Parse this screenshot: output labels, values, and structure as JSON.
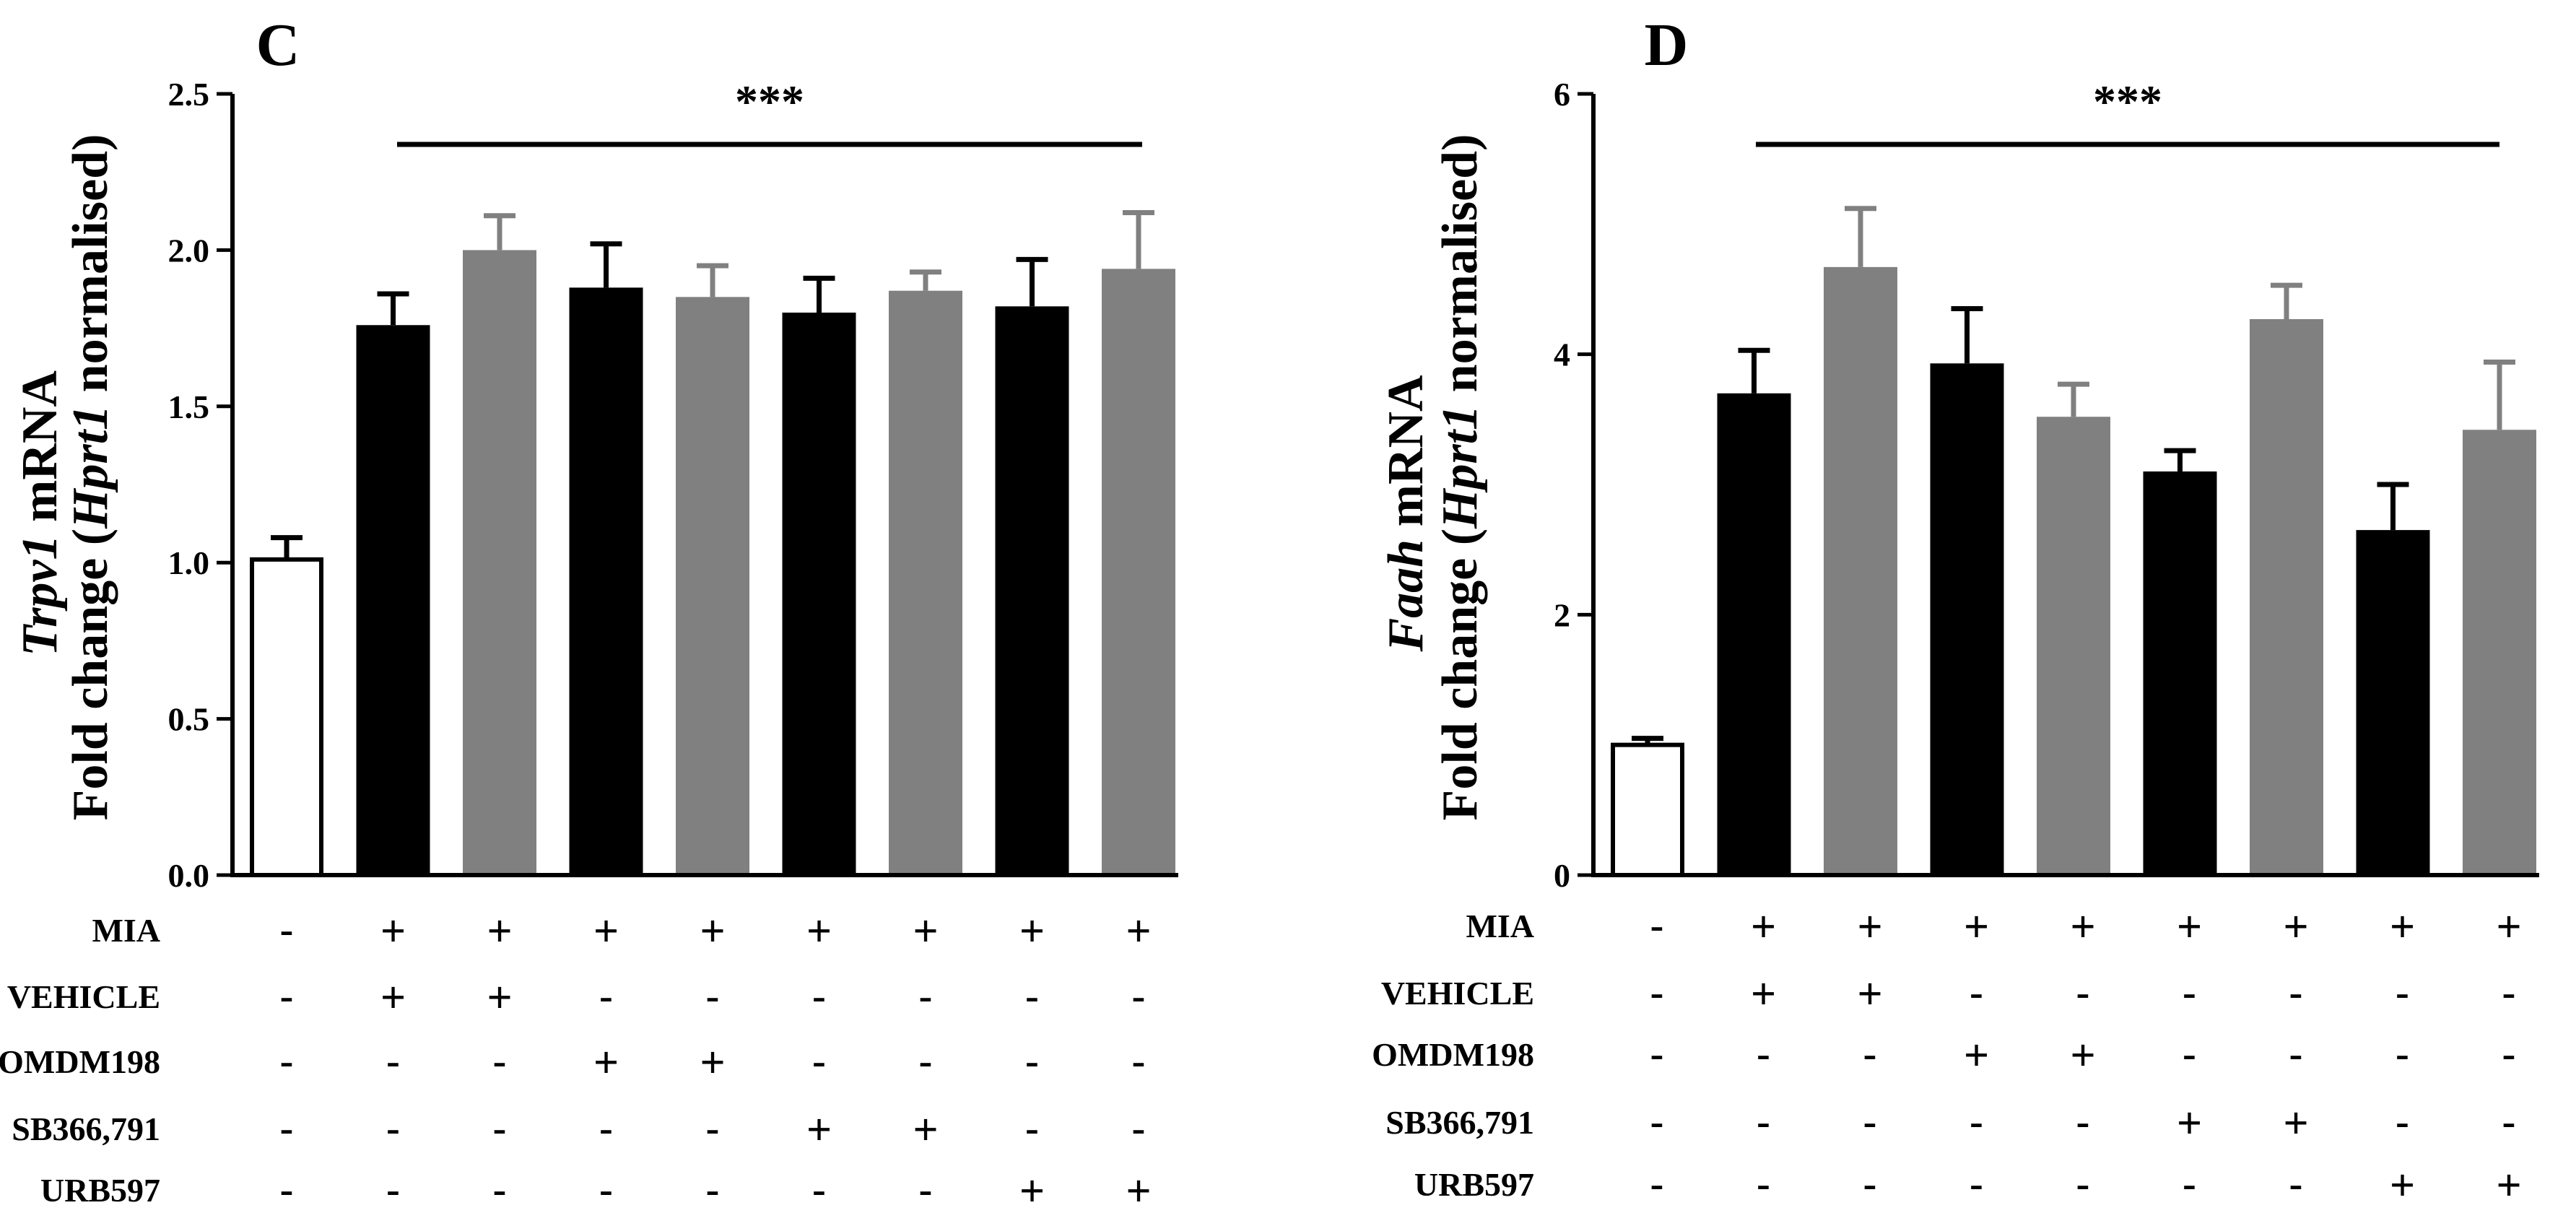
{
  "chart_data": [
    {
      "type": "bar",
      "panel_letter": "C",
      "ylabel_gene": "Trpv1",
      "ylabel_suffix": " mRNA",
      "ylabel_line2_pre": "Fold change (",
      "ylabel_line2_ref": "Hprt1",
      "ylabel_line2_post": " normalised)",
      "ylim": [
        0,
        2.5
      ],
      "yticks": [
        "0.0",
        "0.5",
        "1.0",
        "1.5",
        "2.0",
        "2.5"
      ],
      "significance": "***",
      "values": [
        1.01,
        1.76,
        2.0,
        1.88,
        1.85,
        1.8,
        1.87,
        1.82,
        1.94
      ],
      "errors": [
        0.07,
        0.1,
        0.11,
        0.14,
        0.1,
        0.11,
        0.06,
        0.15,
        0.18
      ],
      "fills": [
        "white",
        "black",
        "gray",
        "black",
        "gray",
        "black",
        "gray",
        "black",
        "gray"
      ]
    },
    {
      "type": "bar",
      "panel_letter": "D",
      "ylabel_gene": "Faah",
      "ylabel_suffix": " mRNA",
      "ylabel_line2_pre": "Fold change (",
      "ylabel_line2_ref": "Hprt1",
      "ylabel_line2_post": " normalised)",
      "ylim": [
        0,
        6
      ],
      "yticks": [
        "0",
        "2",
        "4",
        "6"
      ],
      "significance": "***",
      "values": [
        1.0,
        3.7,
        4.67,
        3.93,
        3.52,
        3.1,
        4.27,
        2.65,
        3.42
      ],
      "errors": [
        0.05,
        0.33,
        0.45,
        0.42,
        0.25,
        0.16,
        0.26,
        0.35,
        0.52
      ],
      "fills": [
        "white",
        "black",
        "gray",
        "black",
        "gray",
        "black",
        "gray",
        "black",
        "gray"
      ]
    }
  ],
  "treatments": [
    {
      "label": "MIA",
      "signs": [
        "-",
        "+",
        "+",
        "+",
        "+",
        "+",
        "+",
        "+",
        "+"
      ]
    },
    {
      "label": "VEHICLE",
      "signs": [
        "-",
        "+",
        "+",
        "-",
        "-",
        "-",
        "-",
        "-",
        "-"
      ]
    },
    {
      "label": "OMDM198",
      "signs": [
        "-",
        "-",
        "-",
        "+",
        "+",
        "-",
        "-",
        "-",
        "-"
      ]
    },
    {
      "label": "SB366,791",
      "signs": [
        "-",
        "-",
        "-",
        "-",
        "-",
        "+",
        "+",
        "-",
        "-"
      ]
    },
    {
      "label": "URB597",
      "signs": [
        "-",
        "-",
        "-",
        "-",
        "-",
        "-",
        "-",
        "+",
        "+"
      ]
    }
  ],
  "colors": {
    "black": "#000000",
    "gray": "#808080",
    "white": "#ffffff"
  }
}
